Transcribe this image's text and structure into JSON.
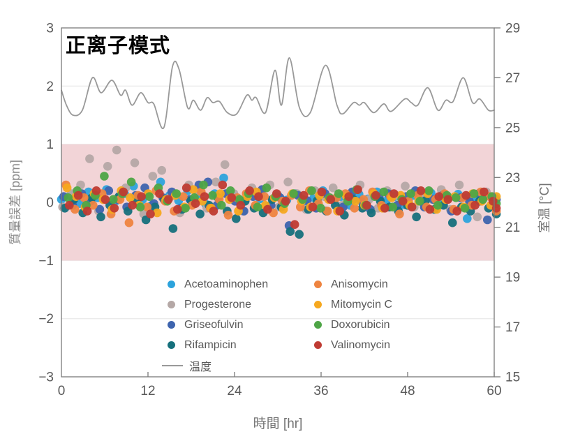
{
  "title": "正离子模式",
  "axes": {
    "x": {
      "label": "時間 [hr]",
      "tick_values": [
        0,
        12,
        24,
        36,
        48,
        60
      ],
      "tick_labels": [
        "0",
        "12",
        "24",
        "36",
        "48",
        "60"
      ]
    },
    "y_left": {
      "label": "質量誤差 [ppm]",
      "tick_values": [
        3,
        2,
        1,
        0,
        -1,
        -2,
        -3
      ],
      "tick_labels": [
        "3",
        "2",
        "1",
        "0",
        "−1",
        "−2",
        "−3"
      ],
      "gridlines": [
        2,
        1,
        0,
        -1,
        -2
      ]
    },
    "y_right": {
      "label": "室温 [°C]",
      "tick_values": [
        29,
        27,
        25,
        23,
        21,
        19,
        17,
        15
      ],
      "tick_labels": [
        "29",
        "27",
        "25",
        "23",
        "21",
        "19",
        "17",
        "15"
      ]
    }
  },
  "style": {
    "band_color": "#F2D4D7",
    "grid_color": "#E3E3E3",
    "axis_color": "#7A7A7A",
    "tick_label_color": "#595959",
    "temp_line_color": "#999999",
    "marker_radius": 6.3
  },
  "legend": {
    "columns": [
      [
        "0",
        "1",
        "2",
        "3",
        "temp"
      ],
      [
        "4",
        "5",
        "6",
        "7"
      ]
    ]
  },
  "chart_data": {
    "type": "scatter",
    "title": "正离子模式",
    "xlabel": "時間 [hr]",
    "ylabel_left": "質量誤差 [ppm]",
    "ylabel_right": "室温 [°C]",
    "xlim": [
      0,
      60
    ],
    "ylim_left": [
      -3,
      3
    ],
    "ylim_right": [
      15,
      29
    ],
    "grid": "horizontal-only",
    "legend_position": "inside-bottom-center",
    "tolerance_band": {
      "from": -1,
      "to": 1,
      "color": "#F2D4D7"
    },
    "series": [
      {
        "name": "Acetoaminophen",
        "color": "#2CA3DC",
        "x_start": 0.0,
        "x_step": 1.25,
        "values": [
          0.05,
          0.12,
          -0.02,
          0.18,
          0.08,
          0.22,
          0.02,
          0.15,
          0.28,
          0.05,
          -0.05,
          0.35,
          0.12,
          0.03,
          0.2,
          0.08,
          -0.03,
          0.15,
          0.42,
          0.1,
          0.02,
          0.18,
          0.06,
          -0.06,
          0.12,
          0.04,
          0.15,
          -0.02,
          0.08,
          0.2,
          0.05,
          0.1,
          -0.05,
          0.14,
          0.06,
          0.18,
          0.02,
          0.1,
          -0.04,
          0.12,
          0.05,
          0.16,
          0.0,
          0.08,
          0.14,
          -0.28,
          0.06,
          0.12,
          0.04
        ]
      },
      {
        "name": "Progesterone",
        "color": "#B5A8A6",
        "x_start": 0.16,
        "x_step": 1.25,
        "values": [
          -0.08,
          0.15,
          0.3,
          0.75,
          -0.15,
          0.62,
          0.9,
          0.25,
          0.68,
          -0.2,
          0.45,
          0.55,
          0.1,
          -0.18,
          0.3,
          0.2,
          -0.1,
          0.35,
          0.65,
          0.15,
          -0.15,
          0.25,
          0.1,
          0.3,
          -0.08,
          0.35,
          0.15,
          -0.12,
          0.2,
          0.1,
          0.25,
          -0.05,
          0.15,
          0.3,
          0.05,
          -0.1,
          0.2,
          0.12,
          0.28,
          -0.08,
          0.15,
          0.05,
          0.22,
          -0.12,
          0.3,
          0.1,
          -0.25,
          0.18,
          0.08
        ]
      },
      {
        "name": "Griseofulvin",
        "color": "#3E64AE",
        "x_start": 0.31,
        "x_step": 1.25,
        "values": [
          0.1,
          -0.05,
          0.15,
          0.02,
          -0.12,
          0.2,
          0.05,
          -0.08,
          0.12,
          0.25,
          -0.02,
          0.08,
          0.18,
          -0.1,
          0.05,
          0.3,
          0.35,
          -0.05,
          0.15,
          0.02,
          -0.15,
          0.1,
          0.22,
          -0.05,
          0.08,
          -0.4,
          0.12,
          0.03,
          -0.1,
          0.15,
          0.05,
          -0.08,
          0.18,
          0.02,
          -0.12,
          0.08,
          0.15,
          -0.05,
          0.1,
          0.2,
          -0.08,
          0.05,
          0.12,
          -0.15,
          0.08,
          0.02,
          0.15,
          -0.3,
          0.05
        ]
      },
      {
        "name": "Rifampicin",
        "color": "#16707C",
        "x_start": 0.47,
        "x_step": 1.25,
        "values": [
          -0.1,
          0.05,
          -0.18,
          0.08,
          -0.25,
          -0.05,
          0.1,
          -0.15,
          0.02,
          -0.3,
          -0.08,
          0.05,
          -0.45,
          -0.12,
          0.03,
          -0.2,
          -0.05,
          0.08,
          -0.15,
          -0.28,
          0.02,
          -0.1,
          -0.18,
          0.05,
          -0.08,
          -0.5,
          -0.55,
          -0.12,
          0.03,
          -0.15,
          -0.05,
          -0.22,
          0.05,
          -0.1,
          -0.18,
          0.02,
          -0.08,
          -0.15,
          -0.05,
          -0.25,
          0.03,
          -0.12,
          -0.05,
          -0.35,
          -0.08,
          -0.15,
          0.02,
          -0.1,
          -0.2
        ]
      },
      {
        "name": "Anisomycin",
        "color": "#EE8440",
        "x_start": 0.63,
        "x_step": 1.25,
        "values": [
          0.3,
          -0.12,
          0.08,
          -0.05,
          0.15,
          -0.2,
          0.05,
          -0.35,
          0.12,
          -0.08,
          0.2,
          0.02,
          -0.15,
          0.1,
          -0.05,
          0.18,
          -0.1,
          0.05,
          -0.22,
          0.08,
          0.15,
          -0.05,
          0.1,
          -0.18,
          0.02,
          0.12,
          -0.08,
          0.2,
          -0.02,
          -0.15,
          0.08,
          0.15,
          -0.1,
          0.05,
          0.18,
          -0.05,
          0.1,
          -0.2,
          0.02,
          0.12,
          -0.08,
          0.05,
          0.15,
          -0.12,
          0.08,
          -0.05,
          0.18,
          0.1,
          -0.15
        ]
      },
      {
        "name": "Mitomycin C",
        "color": "#F6A81F",
        "x_start": 0.78,
        "x_step": 1.25,
        "values": [
          0.25,
          0.1,
          -0.08,
          0.15,
          0.05,
          -0.12,
          0.2,
          0.08,
          -0.05,
          0.15,
          -0.18,
          0.05,
          0.12,
          -0.08,
          0.22,
          0.02,
          -0.1,
          0.15,
          0.05,
          -0.15,
          0.1,
          0.18,
          -0.05,
          0.08,
          -0.12,
          0.15,
          0.02,
          -0.08,
          0.12,
          0.05,
          -0.15,
          0.1,
          0.02,
          -0.05,
          0.15,
          -0.1,
          0.08,
          0.12,
          -0.05,
          0.02,
          0.15,
          -0.12,
          0.05,
          0.1,
          -0.08,
          0.15,
          0.02,
          -0.05,
          0.1
        ]
      },
      {
        "name": "Doxorubicin",
        "color": "#4EA546",
        "x_start": 0.94,
        "x_step": 1.25,
        "values": [
          0.08,
          0.2,
          -0.05,
          0.12,
          0.45,
          0.05,
          0.15,
          0.35,
          -0.08,
          0.1,
          0.25,
          0.02,
          0.15,
          -0.1,
          0.08,
          0.3,
          0.12,
          -0.05,
          0.2,
          0.05,
          0.15,
          -0.08,
          0.25,
          0.1,
          -0.02,
          0.15,
          0.05,
          0.2,
          -0.1,
          0.08,
          0.15,
          0.02,
          0.22,
          -0.05,
          0.1,
          0.18,
          -0.08,
          0.05,
          0.15,
          0.02,
          0.2,
          -0.05,
          0.12,
          0.08,
          -0.1,
          0.15,
          0.05,
          0.1,
          -0.02
        ]
      },
      {
        "name": "Valinomycin",
        "color": "#BF3B33",
        "x_start": 1.09,
        "x_step": 1.25,
        "values": [
          -0.05,
          0.12,
          -0.15,
          0.2,
          0.05,
          -0.1,
          0.18,
          -0.05,
          0.1,
          -0.2,
          0.15,
          0.05,
          -0.12,
          0.25,
          -0.02,
          0.1,
          -0.15,
          0.3,
          0.08,
          -0.05,
          0.2,
          0.1,
          -0.12,
          0.15,
          0.02,
          -0.38,
          0.12,
          -0.08,
          0.18,
          0.05,
          -0.15,
          0.1,
          0.22,
          -0.05,
          0.12,
          -0.1,
          0.15,
          0.02,
          -0.08,
          0.2,
          -0.12,
          0.1,
          0.05,
          -0.15,
          0.12,
          -0.05,
          0.18,
          0.02,
          -0.1
        ]
      }
    ],
    "temperature": {
      "name": "温度",
      "color": "#999999",
      "axis": "right",
      "x": [
        0,
        0.7,
        1.6,
        2.9,
        4.3,
        5.5,
        7.0,
        8.2,
        8.9,
        9.8,
        11.0,
        12.0,
        12.8,
        14.2,
        15.4,
        16.3,
        17.5,
        18.3,
        19.3,
        20.2,
        21.0,
        21.9,
        23.0,
        24.3,
        25.7,
        26.4,
        27.0,
        28.3,
        29.6,
        30.5,
        31.6,
        33.0,
        34.5,
        36.6,
        38.2,
        39.0,
        40.5,
        41.3,
        42.0,
        43.3,
        44.7,
        45.7,
        47.6,
        48.5,
        49.4,
        50.8,
        52.2,
        53.3,
        54.3,
        55.7,
        57.0,
        58.0,
        59.2,
        60.0
      ],
      "y": [
        26.5,
        25.9,
        25.5,
        25.7,
        27.0,
        26.4,
        26.9,
        26.3,
        26.5,
        25.9,
        26.4,
        26.0,
        25.95,
        25.0,
        27.45,
        27.35,
        25.8,
        26.1,
        25.7,
        26.2,
        26.0,
        26.05,
        25.6,
        25.55,
        26.3,
        26.1,
        26.2,
        25.6,
        27.3,
        25.9,
        27.8,
        25.8,
        25.6,
        27.5,
        25.9,
        25.55,
        26.0,
        25.9,
        26.0,
        25.6,
        25.95,
        25.65,
        26.15,
        26.0,
        25.9,
        26.6,
        25.7,
        26.1,
        26.05,
        27.0,
        26.0,
        26.15,
        25.7,
        25.7
      ]
    }
  }
}
